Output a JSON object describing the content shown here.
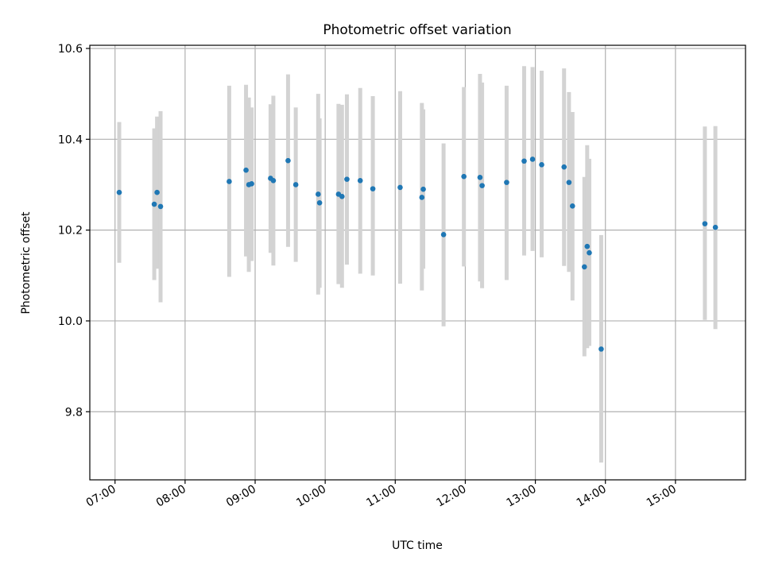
{
  "chart_data": {
    "type": "scatter",
    "title": "Photometric offset variation",
    "xlabel": "UTC time",
    "ylabel": "Photometric offset",
    "x_unit": "hours",
    "xlim": [
      6.64,
      16.0
    ],
    "ylim": [
      9.65,
      10.607
    ],
    "x_ticks": [
      {
        "value": 7,
        "label": "07:00"
      },
      {
        "value": 8,
        "label": "08:00"
      },
      {
        "value": 9,
        "label": "09:00"
      },
      {
        "value": 10,
        "label": "10:00"
      },
      {
        "value": 11,
        "label": "11:00"
      },
      {
        "value": 12,
        "label": "12:00"
      },
      {
        "value": 13,
        "label": "13:00"
      },
      {
        "value": 14,
        "label": "14:00"
      },
      {
        "value": 15,
        "label": "15:00"
      }
    ],
    "y_ticks": [
      {
        "value": 9.8,
        "label": "9.8"
      },
      {
        "value": 10.0,
        "label": "10.0"
      },
      {
        "value": 10.2,
        "label": "10.2"
      },
      {
        "value": 10.4,
        "label": "10.4"
      },
      {
        "value": 10.6,
        "label": "10.6"
      }
    ],
    "grid": true,
    "colors": {
      "point": "#1f77b4",
      "errorbar": "#d3d3d3"
    },
    "points": [
      {
        "x": 7.06,
        "y": 10.283,
        "ylow": 10.128,
        "yhigh": 10.438
      },
      {
        "x": 7.56,
        "y": 10.257,
        "ylow": 10.09,
        "yhigh": 10.424
      },
      {
        "x": 7.6,
        "y": 10.283,
        "ylow": 10.115,
        "yhigh": 10.45
      },
      {
        "x": 7.65,
        "y": 10.252,
        "ylow": 10.041,
        "yhigh": 10.462
      },
      {
        "x": 8.63,
        "y": 10.307,
        "ylow": 10.097,
        "yhigh": 10.518
      },
      {
        "x": 8.87,
        "y": 10.332,
        "ylow": 10.142,
        "yhigh": 10.52
      },
      {
        "x": 8.91,
        "y": 10.3,
        "ylow": 10.108,
        "yhigh": 10.492
      },
      {
        "x": 8.95,
        "y": 10.302,
        "ylow": 10.132,
        "yhigh": 10.47
      },
      {
        "x": 9.22,
        "y": 10.314,
        "ylow": 10.15,
        "yhigh": 10.477
      },
      {
        "x": 9.26,
        "y": 10.309,
        "ylow": 10.122,
        "yhigh": 10.496
      },
      {
        "x": 9.47,
        "y": 10.353,
        "ylow": 10.163,
        "yhigh": 10.543
      },
      {
        "x": 9.58,
        "y": 10.3,
        "ylow": 10.13,
        "yhigh": 10.47
      },
      {
        "x": 9.9,
        "y": 10.279,
        "ylow": 10.058,
        "yhigh": 10.5
      },
      {
        "x": 9.92,
        "y": 10.26,
        "ylow": 10.073,
        "yhigh": 10.446
      },
      {
        "x": 10.19,
        "y": 10.279,
        "ylow": 10.081,
        "yhigh": 10.478
      },
      {
        "x": 10.24,
        "y": 10.274,
        "ylow": 10.073,
        "yhigh": 10.476
      },
      {
        "x": 10.31,
        "y": 10.312,
        "ylow": 10.124,
        "yhigh": 10.499
      },
      {
        "x": 10.5,
        "y": 10.309,
        "ylow": 10.104,
        "yhigh": 10.513
      },
      {
        "x": 10.68,
        "y": 10.291,
        "ylow": 10.1,
        "yhigh": 10.495
      },
      {
        "x": 11.07,
        "y": 10.294,
        "ylow": 10.082,
        "yhigh": 10.506
      },
      {
        "x": 11.38,
        "y": 10.272,
        "ylow": 10.067,
        "yhigh": 10.48
      },
      {
        "x": 11.4,
        "y": 10.29,
        "ylow": 10.115,
        "yhigh": 10.466
      },
      {
        "x": 11.69,
        "y": 10.19,
        "ylow": 9.988,
        "yhigh": 10.391
      },
      {
        "x": 11.98,
        "y": 10.318,
        "ylow": 10.12,
        "yhigh": 10.515
      },
      {
        "x": 12.21,
        "y": 10.316,
        "ylow": 10.087,
        "yhigh": 10.544
      },
      {
        "x": 12.24,
        "y": 10.298,
        "ylow": 10.072,
        "yhigh": 10.525
      },
      {
        "x": 12.59,
        "y": 10.305,
        "ylow": 10.09,
        "yhigh": 10.518
      },
      {
        "x": 12.84,
        "y": 10.352,
        "ylow": 10.144,
        "yhigh": 10.561
      },
      {
        "x": 12.96,
        "y": 10.356,
        "ylow": 10.154,
        "yhigh": 10.559
      },
      {
        "x": 13.09,
        "y": 10.344,
        "ylow": 10.14,
        "yhigh": 10.551
      },
      {
        "x": 13.41,
        "y": 10.339,
        "ylow": 10.121,
        "yhigh": 10.556
      },
      {
        "x": 13.48,
        "y": 10.305,
        "ylow": 10.108,
        "yhigh": 10.504
      },
      {
        "x": 13.53,
        "y": 10.253,
        "ylow": 10.045,
        "yhigh": 10.46
      },
      {
        "x": 13.7,
        "y": 10.119,
        "ylow": 9.922,
        "yhigh": 10.317
      },
      {
        "x": 13.74,
        "y": 10.164,
        "ylow": 9.94,
        "yhigh": 10.387
      },
      {
        "x": 13.77,
        "y": 10.15,
        "ylow": 9.945,
        "yhigh": 10.357
      },
      {
        "x": 13.94,
        "y": 9.938,
        "ylow": 9.688,
        "yhigh": 10.189
      },
      {
        "x": 15.42,
        "y": 10.214,
        "ylow": 10.002,
        "yhigh": 10.428
      },
      {
        "x": 15.57,
        "y": 10.206,
        "ylow": 9.982,
        "yhigh": 10.429
      }
    ]
  }
}
